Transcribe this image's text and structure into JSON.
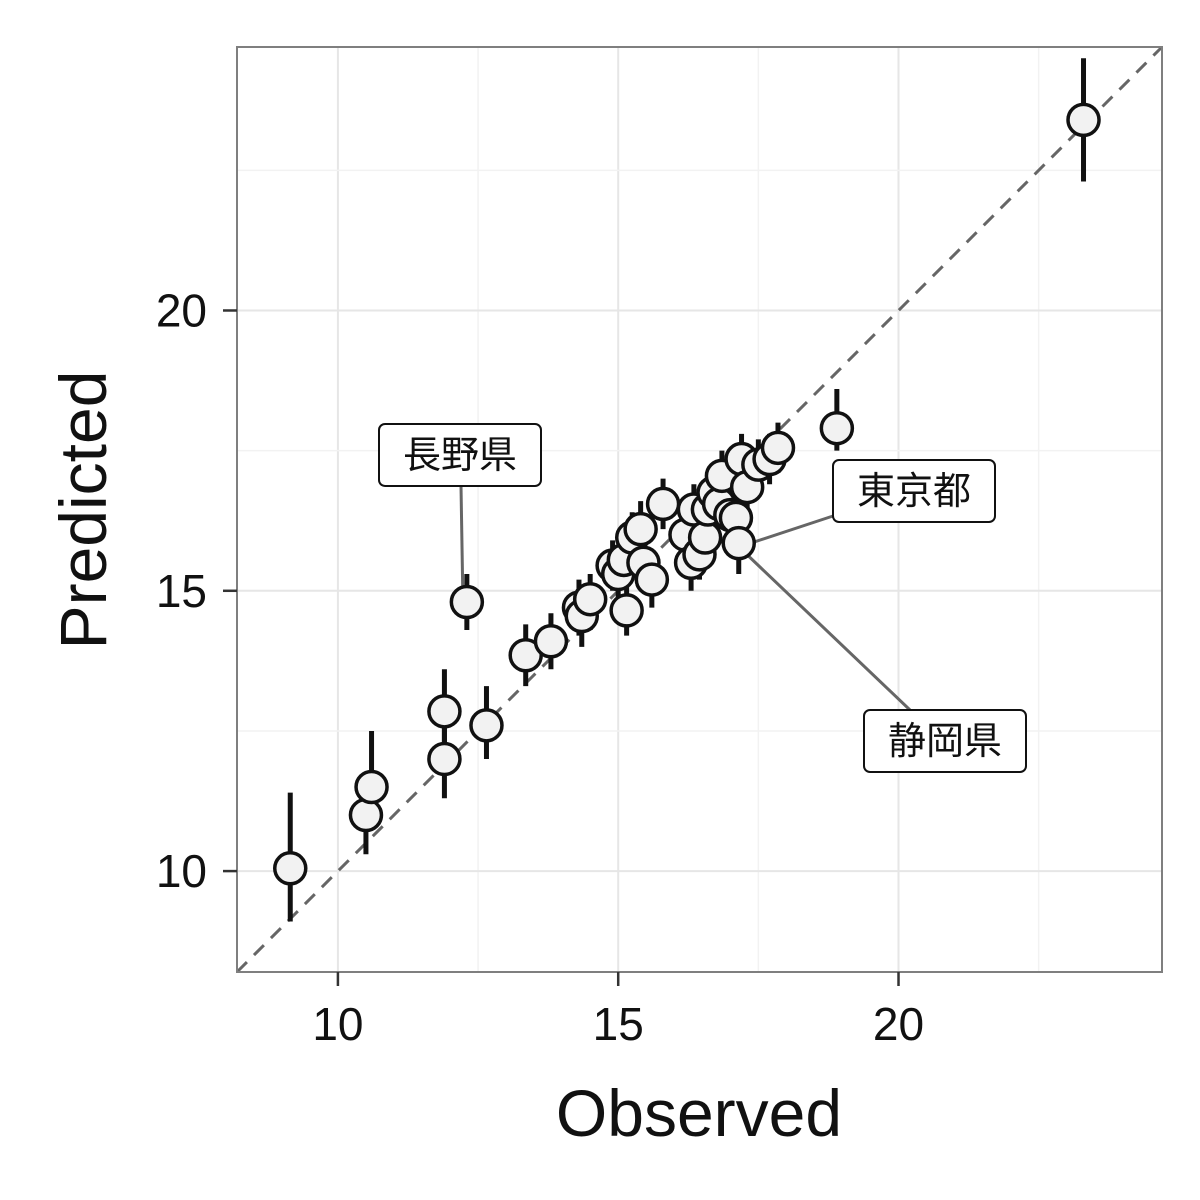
{
  "chart_data": {
    "type": "scatter",
    "title": "",
    "xlabel": "Observed",
    "ylabel": "Predicted",
    "xlim": [
      8.2,
      24.7
    ],
    "ylim": [
      8.2,
      24.7
    ],
    "x_ticks": [
      10,
      15,
      20
    ],
    "y_ticks": [
      10,
      15,
      20
    ],
    "x_tick_labels": [
      "10",
      "15",
      "20"
    ],
    "y_tick_labels": [
      "10",
      "15",
      "20"
    ],
    "grid": true,
    "reference_line": "y = x",
    "points": [
      {
        "x": 9.15,
        "y": 10.05,
        "lo": 9.1,
        "hi": 11.4
      },
      {
        "x": 10.5,
        "y": 11.0,
        "lo": 10.3,
        "hi": 11.7
      },
      {
        "x": 10.6,
        "y": 11.5,
        "lo": 10.8,
        "hi": 12.5
      },
      {
        "x": 11.9,
        "y": 12.0,
        "lo": 11.3,
        "hi": 12.7
      },
      {
        "x": 11.9,
        "y": 12.85,
        "lo": 12.2,
        "hi": 13.6
      },
      {
        "x": 12.3,
        "y": 14.8,
        "lo": 14.3,
        "hi": 15.3,
        "label": "長野県"
      },
      {
        "x": 12.65,
        "y": 12.6,
        "lo": 12.0,
        "hi": 13.3
      },
      {
        "x": 13.35,
        "y": 13.85,
        "lo": 13.3,
        "hi": 14.4
      },
      {
        "x": 13.8,
        "y": 14.1,
        "lo": 13.6,
        "hi": 14.6
      },
      {
        "x": 14.3,
        "y": 14.7,
        "lo": 14.2,
        "hi": 15.2
      },
      {
        "x": 14.35,
        "y": 14.55,
        "lo": 14.0,
        "hi": 15.1
      },
      {
        "x": 14.5,
        "y": 14.85,
        "lo": 14.3,
        "hi": 15.3
      },
      {
        "x": 14.9,
        "y": 15.45,
        "lo": 15.0,
        "hi": 15.9
      },
      {
        "x": 15.0,
        "y": 15.3,
        "lo": 14.8,
        "hi": 15.8
      },
      {
        "x": 15.1,
        "y": 15.55,
        "lo": 15.1,
        "hi": 16.0
      },
      {
        "x": 15.15,
        "y": 14.65,
        "lo": 14.2,
        "hi": 15.1
      },
      {
        "x": 15.25,
        "y": 15.95,
        "lo": 15.5,
        "hi": 16.4
      },
      {
        "x": 15.4,
        "y": 16.1,
        "lo": 15.6,
        "hi": 16.6
      },
      {
        "x": 15.45,
        "y": 15.5,
        "lo": 15.0,
        "hi": 16.0
      },
      {
        "x": 15.6,
        "y": 15.2,
        "lo": 14.7,
        "hi": 15.7
      },
      {
        "x": 15.8,
        "y": 16.55,
        "lo": 16.1,
        "hi": 17.0
      },
      {
        "x": 16.2,
        "y": 16.0,
        "lo": 15.5,
        "hi": 16.5
      },
      {
        "x": 16.3,
        "y": 15.5,
        "lo": 15.0,
        "hi": 16.0
      },
      {
        "x": 16.35,
        "y": 16.45,
        "lo": 16.0,
        "hi": 16.9
      },
      {
        "x": 16.45,
        "y": 15.65,
        "lo": 15.2,
        "hi": 16.1
      },
      {
        "x": 16.55,
        "y": 15.95,
        "lo": 15.5,
        "hi": 16.4
      },
      {
        "x": 16.6,
        "y": 16.45,
        "lo": 16.0,
        "hi": 16.9
      },
      {
        "x": 16.7,
        "y": 16.75,
        "lo": 16.3,
        "hi": 17.2
      },
      {
        "x": 16.8,
        "y": 16.55,
        "lo": 16.1,
        "hi": 17.0
      },
      {
        "x": 16.85,
        "y": 17.05,
        "lo": 16.6,
        "hi": 17.5
      },
      {
        "x": 17.0,
        "y": 16.35,
        "lo": 15.9,
        "hi": 16.8
      },
      {
        "x": 17.1,
        "y": 16.3,
        "lo": 15.8,
        "hi": 16.8
      },
      {
        "x": 17.15,
        "y": 15.85,
        "lo": 15.3,
        "hi": 16.4
      },
      {
        "x": 17.2,
        "y": 17.35,
        "lo": 16.9,
        "hi": 17.8
      },
      {
        "x": 17.3,
        "y": 16.85,
        "lo": 16.4,
        "hi": 17.3
      },
      {
        "x": 17.5,
        "y": 17.25,
        "lo": 16.8,
        "hi": 17.7
      },
      {
        "x": 17.7,
        "y": 17.35,
        "lo": 16.9,
        "hi": 17.8
      },
      {
        "x": 17.85,
        "y": 17.55,
        "lo": 17.1,
        "hi": 18.0
      },
      {
        "x": 18.9,
        "y": 17.9,
        "lo": 17.5,
        "hi": 18.6
      },
      {
        "x": 23.3,
        "y": 23.4,
        "lo": 22.3,
        "hi": 24.5
      }
    ],
    "annotations": [
      {
        "text": "長野県"
      },
      {
        "text": "東京都"
      },
      {
        "text": "静岡県"
      }
    ]
  }
}
